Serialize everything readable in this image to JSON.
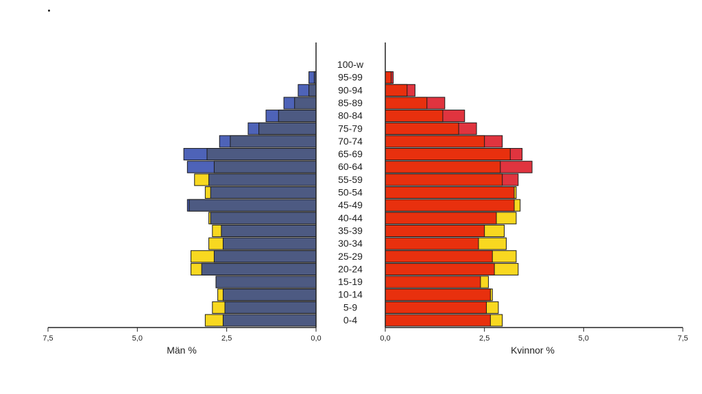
{
  "chart_data": {
    "type": "bar",
    "orientation": "horizontal-population-pyramid",
    "categories": [
      "0-4",
      "5-9",
      "10-14",
      "15-19",
      "20-24",
      "25-29",
      "30-34",
      "35-39",
      "40-44",
      "45-49",
      "50-54",
      "55-59",
      "60-64",
      "65-69",
      "70-74",
      "75-79",
      "80-84",
      "85-89",
      "90-94",
      "95-99",
      "100-w"
    ],
    "left_panel": {
      "xlabel": "Män %",
      "xlim": [
        7.5,
        0.0
      ],
      "ticks": [
        "7,5",
        "5,0",
        "2,5",
        "0,0"
      ],
      "series": [
        {
          "role": "outline",
          "values": [
            3.1,
            2.9,
            2.6,
            2.8,
            3.2,
            3.5,
            3.0,
            2.9,
            3.0,
            3.6,
            3.1,
            3.4,
            3.6,
            3.7,
            2.7,
            1.9,
            1.4,
            0.9,
            0.5,
            0.2,
            0.0
          ]
        },
        {
          "role": "main",
          "values": [
            2.6,
            2.55,
            2.75,
            2.8,
            3.5,
            2.85,
            2.6,
            2.65,
            2.95,
            3.55,
            2.95,
            3.0,
            2.85,
            3.05,
            2.4,
            1.6,
            1.05,
            0.6,
            0.2,
            0.05,
            0.0
          ]
        }
      ]
    },
    "right_panel": {
      "xlabel": "Kvinnor %",
      "xlim": [
        0.0,
        7.5
      ],
      "ticks": [
        "0,0",
        "2,5",
        "5,0",
        "7,5"
      ],
      "series": [
        {
          "role": "outline",
          "values": [
            2.95,
            2.85,
            2.7,
            2.6,
            3.35,
            3.3,
            3.05,
            3.0,
            3.3,
            3.4,
            3.3,
            3.35,
            3.7,
            3.45,
            2.95,
            2.3,
            2.0,
            1.5,
            0.75,
            0.2,
            0.0
          ]
        },
        {
          "role": "main",
          "values": [
            2.65,
            2.55,
            2.65,
            2.4,
            2.75,
            2.7,
            2.35,
            2.5,
            2.8,
            3.25,
            3.25,
            2.95,
            2.9,
            3.15,
            2.5,
            1.85,
            1.45,
            1.05,
            0.55,
            0.15,
            0.0
          ]
        }
      ]
    },
    "colors": {
      "male_main": "#4d5a82",
      "male_outline_larger": "#4e63b8",
      "female_main": "#e8300e",
      "female_outline_larger": "#e0343f",
      "surplus_previous": "#f8d820",
      "bar_border": "#1a1a1a"
    },
    "legend": "none",
    "grid": false
  }
}
